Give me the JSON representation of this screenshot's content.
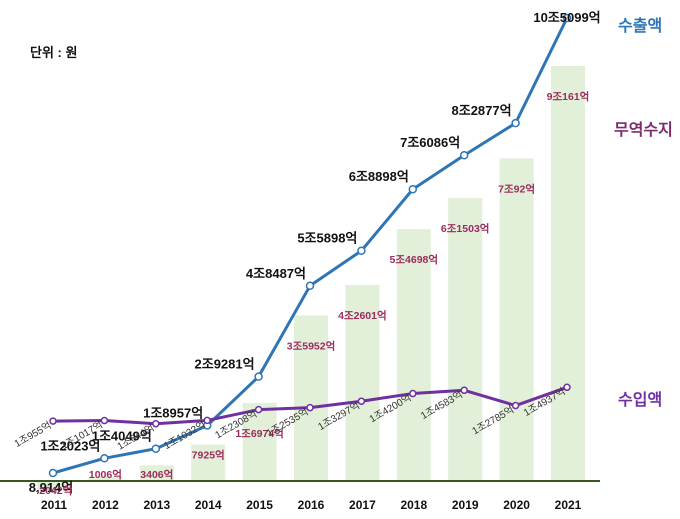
{
  "unit_label": "단위 : 원",
  "legend": {
    "export": "수출액",
    "trade_balance": "무역수지",
    "import": "수입액"
  },
  "colors": {
    "export": "#2e75b6",
    "import": "#7030a0",
    "trade_bar": "#e2efd9",
    "trade_label": "#9b2c5c",
    "baseline": "#385723"
  },
  "chart_data": {
    "type": "bar",
    "categories": [
      "2011",
      "2012",
      "2013",
      "2014",
      "2015",
      "2016",
      "2017",
      "2018",
      "2019",
      "2020",
      "2021"
    ],
    "series": [
      {
        "name": "수출액",
        "type": "line",
        "unit": "억원",
        "values": [
          8914,
          12023,
          14049,
          18957,
          29281,
          48487,
          55898,
          68898,
          76086,
          82877,
          105099
        ],
        "labels": [
          "8,914억",
          "1조2023억",
          "1조4049억",
          "1조8957억",
          "2조9281억",
          "4조8487억",
          "5조5898억",
          "6조8898억",
          "7조6086억",
          "8조2877억",
          "10조5099억"
        ]
      },
      {
        "name": "무역수지",
        "type": "bar",
        "unit": "억원",
        "values": [
          -2042,
          1006,
          3406,
          7925,
          16974,
          35952,
          42601,
          54698,
          61503,
          70092,
          90161
        ],
        "labels": [
          "-2042억",
          "1006억",
          "3406억",
          "7925억",
          "1조6974억",
          "3조5952억",
          "4조2601억",
          "5조4698억",
          "6조1503억",
          "7조92억",
          "9조161억"
        ]
      },
      {
        "name": "수입액",
        "type": "line",
        "unit": "억원",
        "values": [
          10955,
          11017,
          10644,
          11032,
          12308,
          12535,
          13297,
          14200,
          14583,
          12785,
          14937
        ],
        "labels": [
          "1조955억",
          "1조1017억",
          "1조644억",
          "1조1032억",
          "1조2308억",
          "1조2535억",
          "1조3297억",
          "1조4200억",
          "1조4583억",
          "1조2785억",
          "1조4937억"
        ]
      }
    ]
  }
}
